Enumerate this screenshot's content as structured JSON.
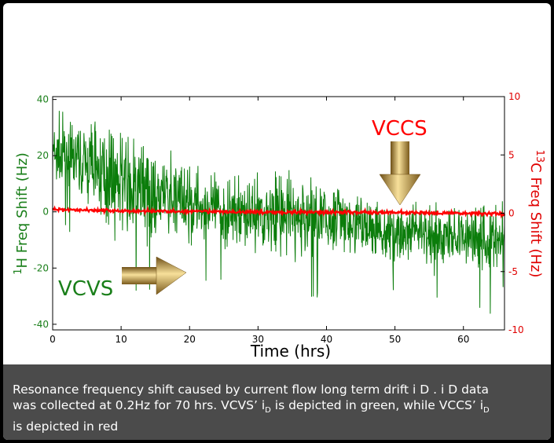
{
  "chart_data": {
    "type": "line",
    "xlabel": "Time (hrs)",
    "ylabel_left_sup": "1",
    "ylabel_left": "H Freq Shift (Hz)",
    "ylabel_right_sup": "13",
    "ylabel_right": "C Freq Shift (Hz)",
    "xlim": [
      0,
      66
    ],
    "ylim_left": [
      -42,
      41
    ],
    "ylim_right": [
      -10,
      10
    ],
    "xticks": [
      0,
      10,
      20,
      30,
      40,
      50,
      60
    ],
    "yticks_left": [
      40,
      20,
      0,
      -20,
      -40
    ],
    "yticks_right": [
      10,
      5,
      0,
      -5,
      -10
    ],
    "colors": {
      "left_axis": "#1a7f1a",
      "right_axis": "#e00000",
      "green_series": "#0b7d0b",
      "red_series": "#ff0000"
    },
    "series": [
      {
        "axis": "left",
        "color": "#0b7d0b",
        "note_envelope": "noisy trace",
        "x": [
          0,
          5,
          10,
          15,
          20,
          25,
          30,
          35,
          40,
          45,
          50,
          55,
          60,
          66
        ],
        "mean": [
          20,
          17,
          10,
          5,
          3,
          0,
          0,
          -2,
          -3,
          -5,
          -8,
          -8,
          -9,
          -10
        ],
        "upper": [
          37,
          34,
          28,
          25,
          18,
          15,
          14,
          15,
          10,
          5,
          4,
          5,
          0,
          5
        ],
        "lower": [
          -5,
          -10,
          -32,
          -28,
          -25,
          -26,
          -28,
          -32,
          -30,
          -30,
          -30,
          -30,
          -35,
          -38
        ]
      },
      {
        "axis": "right",
        "color": "#ff0000",
        "x": [
          0,
          10,
          20,
          30,
          40,
          50,
          60,
          66
        ],
        "mean": [
          0.35,
          0.2,
          0.15,
          0.1,
          0.1,
          0.05,
          0.0,
          -0.05
        ],
        "noise": 0.15
      }
    ],
    "annotations": [
      {
        "text": "VCCS",
        "color": "#ff0000",
        "arrow_at_x": 50.5
      },
      {
        "text": "VCVS",
        "color": "#1a7f1a",
        "arrow_at_x": 19.5
      }
    ]
  },
  "caption": {
    "line1": "Resonance frequency shift caused by current flow long term drift i D . i D data",
    "line2_a": "was collected at 0.2Hz for 70 hrs. VCVS’ i",
    "line2_sub1": "D",
    "line2_b": " is depicted in green, while VCCS’ i",
    "line2_sub2": "D",
    "line3": "is depicted in red"
  }
}
